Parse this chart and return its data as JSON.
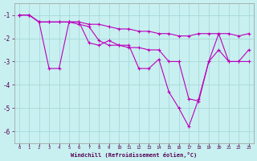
{
  "xlabel": "Windchill (Refroidissement éolien,°C)",
  "background_color": "#c8f0f0",
  "line_color": "#bb00bb",
  "grid_color": "#a8d8d8",
  "x": [
    0,
    1,
    2,
    3,
    4,
    5,
    6,
    7,
    8,
    9,
    10,
    11,
    12,
    13,
    14,
    15,
    16,
    17,
    18,
    19,
    20,
    21,
    22,
    23
  ],
  "line1": [
    -1.0,
    -1.0,
    -1.3,
    -1.3,
    -1.3,
    -1.3,
    -1.3,
    -1.4,
    -1.4,
    -1.5,
    -1.6,
    -1.6,
    -1.7,
    -1.7,
    -1.8,
    -1.8,
    -1.9,
    -1.9,
    -1.8,
    -1.8,
    -1.8,
    -1.8,
    -1.9,
    -1.8
  ],
  "line2": [
    -1.0,
    -1.0,
    -1.3,
    -3.3,
    -3.3,
    -1.3,
    -1.3,
    -2.2,
    -2.3,
    -2.1,
    -2.3,
    -2.3,
    -3.3,
    -3.3,
    -2.9,
    -4.3,
    -5.0,
    -5.8,
    -4.6,
    -3.0,
    -1.8,
    -3.0,
    -3.0,
    -2.5
  ],
  "line3": [
    -1.0,
    -1.0,
    -1.3,
    -1.3,
    -1.3,
    -1.3,
    -1.4,
    -1.5,
    -2.1,
    -2.3,
    -2.3,
    -2.4,
    -2.4,
    -2.5,
    -2.5,
    -3.0,
    -3.0,
    -4.6,
    -4.7,
    -3.0,
    -2.5,
    -3.0,
    -3.0,
    -3.0
  ],
  "ylim": [
    -6.5,
    -0.5
  ],
  "xlim": [
    -0.5,
    23.5
  ],
  "yticks": [
    -6,
    -5,
    -4,
    -3,
    -2,
    -1
  ],
  "xticks": [
    0,
    1,
    2,
    3,
    4,
    5,
    6,
    7,
    8,
    9,
    10,
    11,
    12,
    13,
    14,
    15,
    16,
    17,
    18,
    19,
    20,
    21,
    22,
    23
  ],
  "tick_label_color": "#550055",
  "xlabel_color": "#550055"
}
